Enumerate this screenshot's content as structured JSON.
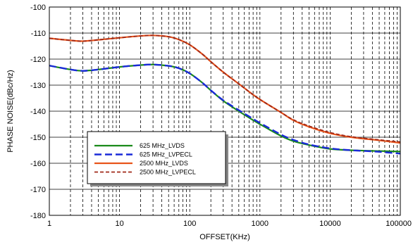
{
  "chart_data": {
    "type": "line",
    "xlabel": "OFFSET(KHz)",
    "ylabel": "PHASE NOISE(dBc/Hz)",
    "x_scale": "log",
    "xlim": [
      1,
      100000
    ],
    "ylim": [
      -180,
      -100
    ],
    "x_ticks": [
      "1",
      "10",
      "100",
      "1000",
      "10000",
      "100000"
    ],
    "y_ticks": [
      "-100",
      "-110",
      "-120",
      "-130",
      "-140",
      "-150",
      "-160",
      "-170",
      "-180"
    ],
    "grid": true,
    "legend_position": "lower-left inside plot",
    "series": [
      {
        "name": "625 MHz_LVDS",
        "color": "#1a8a1a",
        "style": "solid",
        "points": [
          [
            1,
            -122.5
          ],
          [
            2,
            -124
          ],
          [
            3,
            -124.5
          ],
          [
            5,
            -124
          ],
          [
            10,
            -123
          ],
          [
            20,
            -122.3
          ],
          [
            30,
            -122.1
          ],
          [
            50,
            -122.6
          ],
          [
            70,
            -123.5
          ],
          [
            100,
            -125.5
          ],
          [
            150,
            -129
          ],
          [
            200,
            -132
          ],
          [
            300,
            -136
          ],
          [
            500,
            -140
          ],
          [
            700,
            -142.5
          ],
          [
            1000,
            -145
          ],
          [
            2000,
            -149.5
          ],
          [
            3000,
            -151.5
          ],
          [
            5000,
            -153
          ],
          [
            10000,
            -154.5
          ],
          [
            20000,
            -155
          ],
          [
            50000,
            -155.3
          ],
          [
            100000,
            -155.5
          ]
        ]
      },
      {
        "name": "625 MHz_LVPECL",
        "color": "#1a2ad8",
        "style": "dashed",
        "points": [
          [
            1,
            -122.5
          ],
          [
            2,
            -124
          ],
          [
            3,
            -124.5
          ],
          [
            5,
            -124
          ],
          [
            10,
            -123
          ],
          [
            20,
            -122.3
          ],
          [
            30,
            -122.1
          ],
          [
            50,
            -122.6
          ],
          [
            70,
            -123.5
          ],
          [
            100,
            -125.5
          ],
          [
            150,
            -129
          ],
          [
            200,
            -132
          ],
          [
            300,
            -135.8
          ],
          [
            500,
            -139.6
          ],
          [
            700,
            -142
          ],
          [
            1000,
            -144.5
          ],
          [
            2000,
            -149
          ],
          [
            3000,
            -151
          ],
          [
            5000,
            -152.8
          ],
          [
            10000,
            -154.3
          ],
          [
            20000,
            -155
          ],
          [
            50000,
            -155.6
          ],
          [
            100000,
            -156.3
          ]
        ]
      },
      {
        "name": "2500 MHz_LVDS",
        "color": "#e8541a",
        "style": "solid",
        "points": [
          [
            1,
            -112
          ],
          [
            2,
            -112.8
          ],
          [
            3,
            -113.1
          ],
          [
            5,
            -112.6
          ],
          [
            10,
            -111.8
          ],
          [
            20,
            -111.1
          ],
          [
            30,
            -110.9
          ],
          [
            50,
            -111.4
          ],
          [
            70,
            -112.5
          ],
          [
            100,
            -114.5
          ],
          [
            150,
            -118
          ],
          [
            200,
            -121
          ],
          [
            300,
            -125
          ],
          [
            500,
            -129.5
          ],
          [
            700,
            -132.5
          ],
          [
            1000,
            -135.5
          ],
          [
            2000,
            -140.5
          ],
          [
            3000,
            -143.5
          ],
          [
            5000,
            -146
          ],
          [
            10000,
            -148.5
          ],
          [
            20000,
            -150
          ],
          [
            50000,
            -151.2
          ],
          [
            100000,
            -152.2
          ]
        ]
      },
      {
        "name": "2500 MHz_LVPECL",
        "color": "#a02818",
        "style": "dashed",
        "points": [
          [
            1,
            -112
          ],
          [
            2,
            -112.8
          ],
          [
            3,
            -113.1
          ],
          [
            5,
            -112.6
          ],
          [
            10,
            -111.8
          ],
          [
            20,
            -111.1
          ],
          [
            30,
            -110.9
          ],
          [
            50,
            -111.4
          ],
          [
            70,
            -112.5
          ],
          [
            100,
            -114.5
          ],
          [
            150,
            -118
          ],
          [
            200,
            -121
          ],
          [
            300,
            -125
          ],
          [
            500,
            -129.5
          ],
          [
            700,
            -132.5
          ],
          [
            1000,
            -135.5
          ],
          [
            2000,
            -140.5
          ],
          [
            3000,
            -143.3
          ],
          [
            5000,
            -145.7
          ],
          [
            10000,
            -148.2
          ],
          [
            20000,
            -149.8
          ],
          [
            50000,
            -151
          ],
          [
            100000,
            -151.8
          ]
        ]
      }
    ]
  }
}
